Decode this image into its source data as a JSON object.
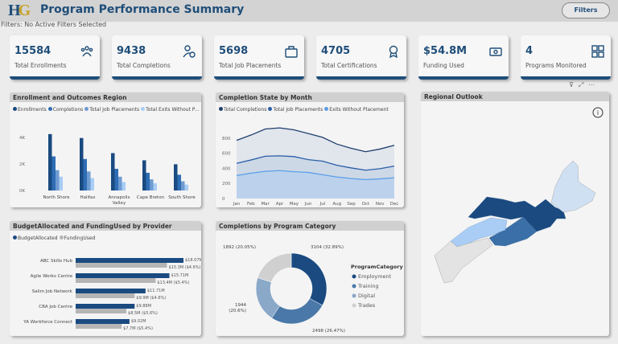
{
  "header": {
    "logo": "HG",
    "title": "Program Performance Summary",
    "filters_button": "Filters"
  },
  "filter_status": "Filters: No Active Filters Selected",
  "kpis": [
    {
      "value": "15584",
      "label": "Total Enrollments",
      "icon": "people-group-icon"
    },
    {
      "value": "9438",
      "label": "Total Completions",
      "icon": "user-check-icon"
    },
    {
      "value": "5698",
      "label": "Total Job Placements",
      "icon": "briefcase-icon"
    },
    {
      "value": "4705",
      "label": "Total Certifications",
      "icon": "award-ribbon-icon"
    },
    {
      "value": "$54.8M",
      "label": "Funding Used",
      "icon": "money-bill-icon"
    },
    {
      "value": "4",
      "label": "Programs Monitored",
      "icon": "grid-icon"
    }
  ],
  "colors": {
    "primary": "#1f4e79",
    "dark": "#1a4a80",
    "mid": "#2f6db5",
    "light": "#6f9bd1",
    "lighter": "#a9cdf5",
    "gray": "#b5b5b5"
  },
  "chart_data": [
    {
      "type": "bar",
      "title": "Enrollment and Outcomes Region",
      "categories": [
        "North Shore",
        "Halifax",
        "Annapolis Valley",
        "Cape Breton",
        "South Shore"
      ],
      "series": [
        {
          "name": "Enrollments",
          "values": [
            4300,
            4000,
            2850,
            2300,
            2000
          ]
        },
        {
          "name": "Completions",
          "values": [
            2600,
            2400,
            1650,
            1350,
            1200
          ]
        },
        {
          "name": "Total Job Placements",
          "values": [
            1550,
            1450,
            1050,
            850,
            700
          ]
        },
        {
          "name": "Total Exits Without P...",
          "values": [
            1050,
            950,
            650,
            550,
            450
          ]
        }
      ],
      "yticks": [
        "0K",
        "2K",
        "4K"
      ],
      "ylim": [
        0,
        4500
      ]
    },
    {
      "type": "area",
      "title": "Completion State by Month",
      "categories": [
        "Jan",
        "Feb",
        "Mar",
        "Apr",
        "May",
        "Jun",
        "Jul",
        "Aug",
        "Sep",
        "Oct",
        "Nov",
        "Dec"
      ],
      "series": [
        {
          "name": "Total Completions",
          "values": [
            770,
            840,
            920,
            935,
            910,
            860,
            810,
            720,
            665,
            620,
            655,
            705
          ]
        },
        {
          "name": "Total Job Placements",
          "values": [
            465,
            510,
            560,
            565,
            555,
            515,
            495,
            440,
            405,
            375,
            395,
            430
          ]
        },
        {
          "name": "Exits Without Placement",
          "values": [
            305,
            335,
            360,
            370,
            355,
            345,
            315,
            285,
            265,
            250,
            260,
            275
          ]
        }
      ],
      "yticks": [
        "0",
        "200",
        "400",
        "600",
        "800"
      ],
      "ylim": [
        0,
        1000
      ]
    },
    {
      "type": "bar",
      "orientation": "horizontal",
      "title": "BudgetAllocated and FundingUsed by Provider",
      "categories": [
        "ABC Skills Hub",
        "Agile Works Centre",
        "Salim Job Network",
        "CBA Job Centre",
        "YA Workforce Connect"
      ],
      "series": [
        {
          "name": "BudgetAllocated",
          "values": [
            18.07,
            15.71,
            11.71,
            9.88,
            9.02
          ],
          "labels": [
            "$18.07M",
            "$15.71M",
            "$11.71M",
            "$9.88M",
            "$9.02M"
          ]
        },
        {
          "name": "FundingUsed",
          "values": [
            15.3,
            13.4,
            9.9,
            8.5,
            7.7
          ],
          "labels": [
            "$15.3M ($4.6%)",
            "$13.4M ($5.4%)",
            "$9.9M ($4.6%)",
            "$8.5M ($5.6%)",
            "$7.7M ($5.4%)"
          ]
        }
      ]
    },
    {
      "type": "pie",
      "title": "Completions by Program Category",
      "legend_title": "ProgramCategory",
      "categories": [
        "Employment",
        "Training",
        "Digital",
        "Trades"
      ],
      "values": [
        3104,
        2498,
        1944,
        1892
      ],
      "labels": [
        "3104 (32.89%)",
        "2498 (26.47%)",
        "1944 (20.6%)",
        "1892 (20.05%)"
      ],
      "colors": [
        "#1a4a80",
        "#4a78a8",
        "#8aa8c8",
        "#d0d0d0"
      ]
    }
  ],
  "map": {
    "title": "Regional Outlook",
    "info_icon": "info-icon"
  }
}
